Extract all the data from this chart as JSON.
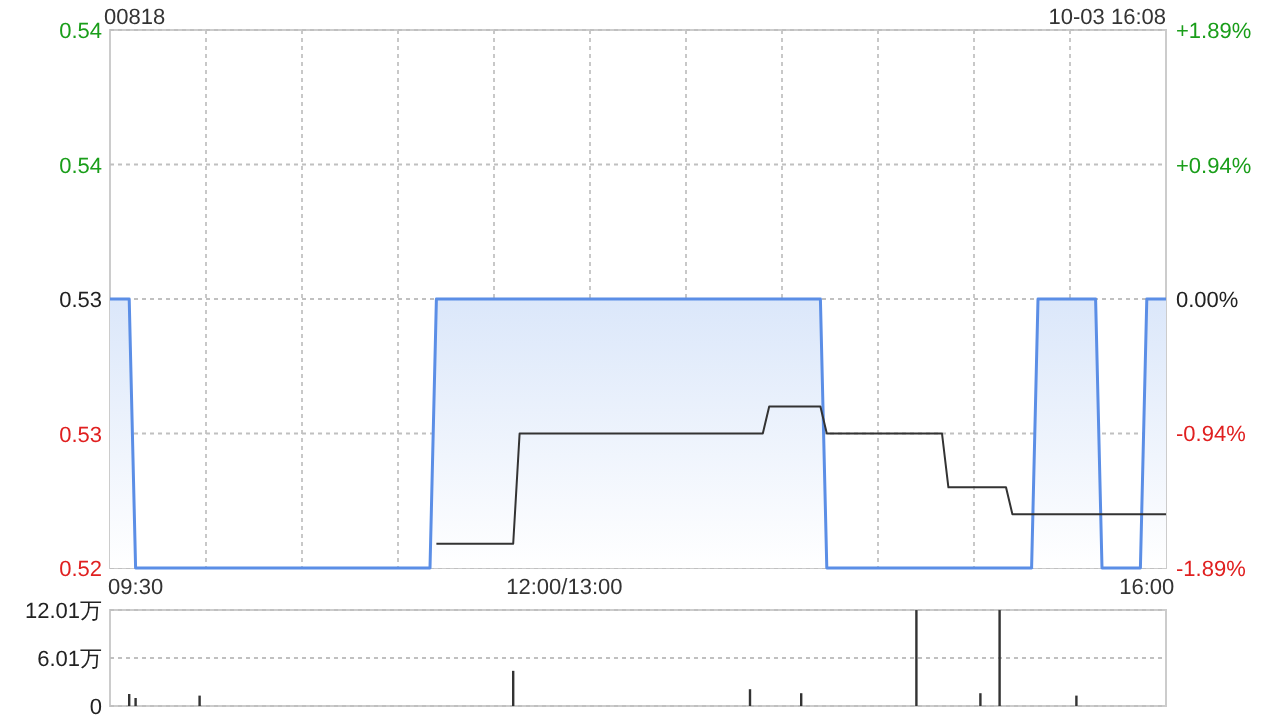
{
  "chart_data": [
    {
      "type": "area",
      "title": "00818",
      "annotations": [
        "10-03 16:08"
      ],
      "categories": [
        null,
        null,
        null,
        null,
        "09:30",
        null,
        null,
        null,
        null,
        null,
        null,
        null,
        null,
        null,
        null,
        null,
        null,
        null,
        null,
        null,
        null,
        null,
        null,
        null,
        null,
        null,
        null,
        null,
        null,
        null,
        null,
        null,
        null,
        null,
        null,
        null,
        null,
        null,
        null,
        null,
        null,
        null,
        null,
        null,
        null,
        null,
        null,
        null,
        null,
        null,
        null,
        null,
        null,
        null,
        null,
        null,
        null,
        null,
        null,
        null,
        null,
        null,
        null,
        null,
        null,
        null,
        null,
        null,
        null,
        null,
        null,
        "12:00/13:00",
        null,
        null,
        null,
        null,
        null,
        null,
        null,
        null,
        null,
        null,
        null,
        null,
        null,
        null,
        null,
        null,
        null,
        null,
        null,
        null,
        null,
        null,
        null,
        null,
        null,
        null,
        null,
        null,
        null,
        null,
        null,
        null,
        null,
        null,
        null,
        null,
        null,
        null,
        null,
        null,
        null,
        null,
        null,
        null,
        null,
        null,
        null,
        null,
        null,
        null,
        null,
        null,
        null,
        null,
        null,
        null,
        null,
        null,
        null,
        null,
        null,
        null,
        null,
        null,
        null,
        null,
        null,
        null,
        null,
        null,
        null,
        null,
        null,
        null,
        null,
        null,
        null,
        null,
        null,
        null,
        null,
        null,
        null,
        null,
        null,
        null,
        null,
        null,
        null,
        null,
        "16:00",
        null,
        null,
        null
      ],
      "ylim": [
        0.52,
        0.54
      ],
      "yticks": [
        {
          "value": 0.54,
          "label": "0.54"
        },
        {
          "value": 0.535,
          "label": "0.54"
        },
        {
          "value": 0.53,
          "label": "0.53"
        },
        {
          "value": 0.525,
          "label": "0.53"
        },
        {
          "value": 0.52,
          "label": "0.52"
        }
      ],
      "y2lim": [
        -1.89,
        1.89
      ],
      "y2ticks": [
        {
          "value": 1.89,
          "label": "+1.89%"
        },
        {
          "value": 0.94,
          "label": "+0.94%"
        },
        {
          "value": 0,
          "label": "0.00%"
        },
        {
          "value": -0.94,
          "label": "-0.94%"
        },
        {
          "value": -1.89,
          "label": "-1.89%"
        }
      ],
      "grid": true,
      "series": [
        {
          "color": "#5b8ee6",
          "values": [
            0.53,
            0.53,
            0.53,
            0.53,
            0.52,
            0.52,
            0.52,
            0.52,
            0.52,
            0.52,
            0.52,
            0.52,
            0.52,
            0.52,
            0.52,
            0.52,
            0.52,
            0.52,
            0.52,
            0.52,
            0.52,
            0.52,
            0.52,
            0.52,
            0.52,
            0.52,
            0.52,
            0.52,
            0.52,
            0.52,
            0.52,
            0.52,
            0.52,
            0.52,
            0.52,
            0.52,
            0.52,
            0.52,
            0.52,
            0.52,
            0.52,
            0.52,
            0.52,
            0.52,
            0.52,
            0.52,
            0.52,
            0.52,
            0.52,
            0.52,
            0.52,
            0.53,
            0.53,
            0.53,
            0.53,
            0.53,
            0.53,
            0.53,
            0.53,
            0.53,
            0.53,
            0.53,
            0.53,
            0.53,
            0.53,
            0.53,
            0.53,
            0.53,
            0.53,
            0.53,
            0.53,
            0.53,
            0.53,
            0.53,
            0.53,
            0.53,
            0.53,
            0.53,
            0.53,
            0.53,
            0.53,
            0.53,
            0.53,
            0.53,
            0.53,
            0.53,
            0.53,
            0.53,
            0.53,
            0.53,
            0.53,
            0.53,
            0.53,
            0.53,
            0.53,
            0.53,
            0.53,
            0.53,
            0.53,
            0.53,
            0.53,
            0.53,
            0.53,
            0.53,
            0.53,
            0.53,
            0.53,
            0.53,
            0.53,
            0.53,
            0.53,
            0.53,
            0.52,
            0.52,
            0.52,
            0.52,
            0.52,
            0.52,
            0.52,
            0.52,
            0.52,
            0.52,
            0.52,
            0.52,
            0.52,
            0.52,
            0.52,
            0.52,
            0.52,
            0.52,
            0.52,
            0.52,
            0.52,
            0.52,
            0.52,
            0.52,
            0.52,
            0.52,
            0.52,
            0.52,
            0.52,
            0.52,
            0.52,
            0.52,
            0.52,
            0.53,
            0.53,
            0.53,
            0.53,
            0.53,
            0.53,
            0.53,
            0.53,
            0.53,
            0.53,
            0.52,
            0.52,
            0.52,
            0.52,
            0.52,
            0.52,
            0.52,
            0.53,
            0.53,
            0.53,
            0.53
          ]
        },
        {
          "type": "line",
          "color": "#333333",
          "values": [
            null,
            null,
            null,
            null,
            null,
            null,
            null,
            null,
            null,
            null,
            null,
            null,
            null,
            null,
            null,
            null,
            null,
            null,
            null,
            null,
            null,
            null,
            null,
            null,
            null,
            null,
            null,
            null,
            null,
            null,
            null,
            null,
            null,
            null,
            null,
            null,
            null,
            null,
            null,
            null,
            null,
            null,
            null,
            null,
            null,
            null,
            null,
            null,
            null,
            null,
            null,
            0.5209,
            0.5209,
            0.5209,
            0.5209,
            0.5209,
            0.5209,
            0.5209,
            0.5209,
            0.5209,
            0.5209,
            0.5209,
            0.5209,
            0.5209,
            0.525,
            0.525,
            0.525,
            0.525,
            0.525,
            0.525,
            0.525,
            0.525,
            0.525,
            0.525,
            0.525,
            0.525,
            0.525,
            0.525,
            0.525,
            0.525,
            0.525,
            0.525,
            0.525,
            0.525,
            0.525,
            0.525,
            0.525,
            0.525,
            0.525,
            0.525,
            0.525,
            0.525,
            0.525,
            0.525,
            0.525,
            0.525,
            0.525,
            0.525,
            0.525,
            0.525,
            0.525,
            0.525,
            0.525,
            0.526,
            0.526,
            0.526,
            0.526,
            0.526,
            0.526,
            0.526,
            0.526,
            0.526,
            0.525,
            0.525,
            0.525,
            0.525,
            0.525,
            0.525,
            0.525,
            0.525,
            0.525,
            0.525,
            0.525,
            0.525,
            0.525,
            0.525,
            0.525,
            0.525,
            0.525,
            0.525,
            0.525,
            0.523,
            0.523,
            0.523,
            0.523,
            0.523,
            0.523,
            0.523,
            0.523,
            0.523,
            0.523,
            0.522,
            0.522,
            0.522,
            0.522,
            0.522,
            0.522,
            0.522,
            0.522,
            0.522,
            0.522,
            0.522,
            0.522,
            0.522,
            0.522,
            0.522,
            0.522,
            0.522,
            0.522,
            0.522,
            0.522,
            0.522,
            0.522,
            0.522,
            0.522,
            0.522
          ]
        }
      ]
    },
    {
      "type": "bar",
      "color": "#333333",
      "categories": [
        null,
        null,
        null,
        null,
        null,
        null,
        null,
        null,
        null,
        null,
        null,
        null,
        null,
        null,
        null,
        null,
        null,
        null,
        null,
        null,
        null,
        null,
        null,
        null,
        null,
        null,
        null,
        null,
        null,
        null,
        null,
        null,
        null,
        null,
        null,
        null,
        null,
        null,
        null,
        null,
        null,
        null,
        null,
        null,
        null,
        null,
        null,
        null,
        null,
        null,
        null,
        null,
        null,
        null,
        null,
        null,
        null,
        null,
        null,
        null,
        null,
        null,
        null,
        null,
        null,
        null,
        null,
        null,
        null,
        null,
        null,
        null,
        null,
        null,
        null,
        null,
        null,
        null,
        null,
        null,
        null,
        null,
        null,
        null,
        null,
        null,
        null,
        null,
        null,
        null,
        null,
        null,
        null,
        null,
        null,
        null,
        null,
        null,
        null,
        null,
        null,
        null,
        null,
        null,
        null,
        null,
        null,
        null,
        null,
        null,
        null,
        null,
        null,
        null,
        null,
        null,
        null,
        null,
        null,
        null,
        null,
        null,
        null,
        null,
        null,
        null,
        null,
        null,
        null,
        null,
        null,
        null,
        null,
        null,
        null,
        null,
        null,
        null,
        null,
        null,
        null,
        null,
        null,
        null,
        null,
        null,
        null,
        null,
        null,
        null,
        null,
        null,
        null,
        null,
        null,
        null,
        null,
        null,
        null,
        null,
        null,
        null,
        null,
        null,
        null,
        null
      ],
      "values": [
        null,
        null,
        null,
        1.5,
        1.0,
        null,
        null,
        null,
        null,
        null,
        null,
        null,
        null,
        null,
        1.3,
        null,
        null,
        null,
        null,
        null,
        null,
        null,
        null,
        null,
        null,
        null,
        null,
        null,
        null,
        null,
        null,
        null,
        null,
        null,
        null,
        null,
        null,
        null,
        null,
        null,
        null,
        null,
        null,
        null,
        null,
        null,
        null,
        null,
        null,
        null,
        null,
        null,
        null,
        null,
        null,
        null,
        null,
        null,
        null,
        null,
        null,
        null,
        null,
        4.4,
        null,
        null,
        null,
        null,
        null,
        null,
        null,
        null,
        null,
        null,
        null,
        null,
        null,
        null,
        null,
        null,
        null,
        null,
        null,
        null,
        null,
        null,
        null,
        null,
        null,
        null,
        null,
        null,
        null,
        null,
        null,
        null,
        null,
        null,
        null,
        null,
        2.1,
        null,
        null,
        null,
        null,
        null,
        null,
        null,
        1.6,
        null,
        null,
        null,
        null,
        null,
        null,
        null,
        null,
        null,
        null,
        null,
        null,
        null,
        null,
        null,
        null,
        null,
        12,
        null,
        null,
        null,
        null,
        null,
        null,
        null,
        null,
        null,
        1.6,
        null,
        null,
        12,
        null,
        null,
        null,
        null,
        null,
        null,
        null,
        null,
        null,
        null,
        null,
        1.3,
        null,
        null,
        null,
        null,
        null,
        null,
        null,
        null,
        null,
        null,
        null,
        null,
        null,
        null
      ],
      "ylim": [
        0,
        12.01
      ],
      "yticks": [
        {
          "value": 0,
          "label": "0"
        },
        {
          "value": 6.01,
          "label": "6.01万"
        },
        {
          "value": 12.01,
          "label": "12.01万"
        }
      ],
      "grid": "y",
      "tick_labels": "y"
    }
  ]
}
